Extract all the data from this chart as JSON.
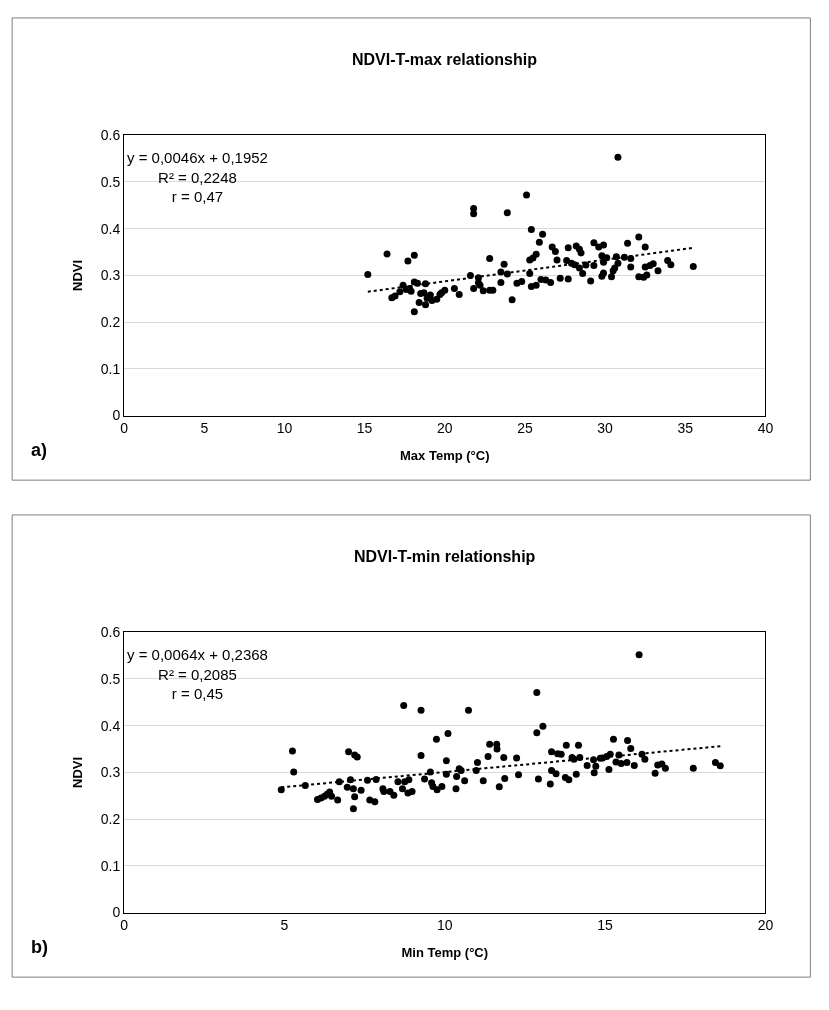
{
  "chart_data": [
    {
      "type": "scatter",
      "title": "NDVI-T-max relationship",
      "xlabel": "Max Temp (°C)",
      "ylabel": "NDVI",
      "xlim": [
        0,
        40
      ],
      "xticks": [
        0,
        5,
        10,
        15,
        20,
        25,
        30,
        35,
        40
      ],
      "ylim": [
        0,
        0.6
      ],
      "yticks": [
        0,
        0.1,
        0.2,
        0.3,
        0.4,
        0.5,
        0.6
      ],
      "grid": "y",
      "annotations": [
        "y = 0,0046x + 0,1952",
        "R² = 0,2248",
        "r = 0,47",
        "a)"
      ],
      "series": [
        {
          "type": "scatter",
          "color": "#000000",
          "marker": "circle",
          "x": [
            15.2,
            16.4,
            17.7,
            18.1,
            16.7,
            16.9,
            17.2,
            17.4,
            17.6,
            17.8,
            17.9,
            18.1,
            18.3,
            18.1,
            18.4,
            18.5,
            18.7,
            18.8,
            18.8,
            18.9,
            19.1,
            19.2,
            19.5,
            19.7,
            19.8,
            20.0,
            20.6,
            20.9,
            21.8,
            21.8,
            21.6,
            21.8,
            22.1,
            22.1,
            22.2,
            22.4,
            22.8,
            22.8,
            23.0,
            23.5,
            23.7,
            23.5,
            23.9,
            23.9,
            24.2,
            24.5,
            24.8,
            25.1,
            25.4,
            25.3,
            25.4,
            25.7,
            25.3,
            25.5,
            25.7,
            25.9,
            26.1,
            26.0,
            26.3,
            26.6,
            26.7,
            26.9,
            27.0,
            27.2,
            27.7,
            27.7,
            27.6,
            27.9,
            28.2,
            28.4,
            28.5,
            28.1,
            28.4,
            28.6,
            28.8,
            29.1,
            29.3,
            29.3,
            29.6,
            29.9,
            29.8,
            29.9,
            30.1,
            29.8,
            29.9,
            30.4,
            30.5,
            30.6,
            30.7,
            30.8,
            30.8,
            31.2,
            31.4,
            31.6,
            31.6,
            32.1,
            32.1,
            32.4,
            32.5,
            32.6,
            32.5,
            32.8,
            33.0,
            33.3,
            33.9,
            34.1,
            35.5
          ],
          "values": [
            0.302,
            0.346,
            0.331,
            0.343,
            0.252,
            0.256,
            0.265,
            0.279,
            0.27,
            0.272,
            0.266,
            0.286,
            0.283,
            0.222,
            0.242,
            0.261,
            0.263,
            0.282,
            0.237,
            0.251,
            0.258,
            0.246,
            0.249,
            0.259,
            0.263,
            0.268,
            0.272,
            0.259,
            0.443,
            0.432,
            0.3,
            0.272,
            0.295,
            0.284,
            0.279,
            0.267,
            0.336,
            0.268,
            0.268,
            0.285,
            0.324,
            0.307,
            0.303,
            0.434,
            0.248,
            0.283,
            0.287,
            0.472,
            0.398,
            0.304,
            0.276,
            0.279,
            0.333,
            0.337,
            0.345,
            0.371,
            0.388,
            0.291,
            0.29,
            0.285,
            0.361,
            0.351,
            0.333,
            0.294,
            0.292,
            0.359,
            0.332,
            0.326,
            0.363,
            0.356,
            0.348,
            0.323,
            0.316,
            0.304,
            0.322,
            0.288,
            0.321,
            0.37,
            0.361,
            0.365,
            0.342,
            0.328,
            0.338,
            0.298,
            0.305,
            0.297,
            0.31,
            0.316,
            0.34,
            0.326,
            0.553,
            0.339,
            0.369,
            0.336,
            0.318,
            0.297,
            0.382,
            0.296,
            0.361,
            0.301,
            0.318,
            0.321,
            0.325,
            0.31,
            0.332,
            0.323,
            0.319
          ]
        },
        {
          "type": "line",
          "color": "#000000",
          "marker": "none",
          "line_style": "dotted",
          "x": [
            15.2,
            35.5
          ],
          "values": [
            0.265,
            0.359
          ]
        }
      ]
    },
    {
      "type": "scatter",
      "title": "NDVI-T-min relationship",
      "xlabel": "Min Temp (°C)",
      "ylabel": "NDVI",
      "xlim": [
        0,
        20
      ],
      "xticks": [
        0,
        5,
        10,
        15,
        20
      ],
      "ylim": [
        0,
        0.6
      ],
      "yticks": [
        0,
        0.1,
        0.2,
        0.3,
        0.4,
        0.5,
        0.6
      ],
      "grid": "y",
      "annotations": [
        "y = 0,0064x + 0,2368",
        "R² = 0,2085",
        "r = 0,45",
        "b)"
      ],
      "series": [
        {
          "type": "scatter",
          "color": "#000000",
          "marker": "circle",
          "x": [
            4.9,
            5.25,
            5.29,
            5.65,
            6.03,
            6.14,
            6.25,
            6.33,
            6.41,
            6.47,
            6.66,
            6.71,
            7.0,
            7.19,
            7.27,
            6.96,
            7.06,
            7.15,
            7.19,
            7.15,
            7.39,
            7.59,
            7.66,
            7.82,
            7.86,
            8.07,
            8.1,
            8.29,
            8.41,
            8.54,
            8.72,
            8.68,
            8.75,
            8.85,
            8.98,
            8.88,
            9.26,
            9.26,
            9.37,
            9.55,
            9.59,
            9.63,
            9.76,
            9.74,
            9.91,
            10.05,
            10.05,
            10.1,
            10.35,
            10.37,
            10.45,
            10.51,
            10.62,
            10.74,
            10.98,
            11.02,
            11.2,
            11.35,
            11.4,
            11.62,
            11.63,
            11.7,
            11.84,
            11.87,
            12.24,
            12.3,
            12.87,
            12.87,
            13.06,
            12.92,
            13.29,
            13.33,
            13.33,
            13.47,
            13.52,
            13.63,
            13.79,
            13.76,
            13.87,
            13.97,
            14.03,
            14.1,
            14.17,
            14.21,
            14.44,
            14.64,
            14.66,
            14.71,
            14.85,
            14.92,
            15.05,
            15.12,
            15.16,
            15.26,
            15.34,
            15.43,
            15.5,
            15.68,
            15.7,
            15.8,
            15.91,
            16.06,
            16.15,
            16.24,
            16.56,
            16.64,
            16.77,
            16.88,
            17.75,
            18.44,
            18.59
          ],
          "values": [
            0.263,
            0.346,
            0.301,
            0.272,
            0.242,
            0.245,
            0.249,
            0.253,
            0.258,
            0.249,
            0.241,
            0.28,
            0.344,
            0.337,
            0.333,
            0.268,
            0.284,
            0.265,
            0.248,
            0.222,
            0.262,
            0.283,
            0.241,
            0.237,
            0.285,
            0.265,
            0.259,
            0.259,
            0.251,
            0.28,
            0.443,
            0.265,
            0.28,
            0.256,
            0.259,
            0.284,
            0.433,
            0.336,
            0.286,
            0.301,
            0.278,
            0.27,
            0.263,
            0.371,
            0.27,
            0.325,
            0.296,
            0.383,
            0.265,
            0.291,
            0.308,
            0.304,
            0.282,
            0.433,
            0.304,
            0.321,
            0.282,
            0.334,
            0.36,
            0.36,
            0.35,
            0.269,
            0.332,
            0.287,
            0.331,
            0.295,
            0.471,
            0.385,
            0.399,
            0.286,
            0.275,
            0.344,
            0.304,
            0.297,
            0.34,
            0.339,
            0.358,
            0.289,
            0.284,
            0.332,
            0.328,
            0.296,
            0.358,
            0.332,
            0.315,
            0.327,
            0.299,
            0.313,
            0.33,
            0.331,
            0.334,
            0.306,
            0.339,
            0.371,
            0.322,
            0.337,
            0.319,
            0.321,
            0.368,
            0.351,
            0.315,
            0.552,
            0.339,
            0.328,
            0.298,
            0.316,
            0.318,
            0.309,
            0.309,
            0.321,
            0.314
          ]
        },
        {
          "type": "line",
          "color": "#000000",
          "marker": "none",
          "line_style": "dotted",
          "x": [
            4.9,
            18.6
          ],
          "values": [
            0.268,
            0.356
          ]
        }
      ]
    }
  ]
}
